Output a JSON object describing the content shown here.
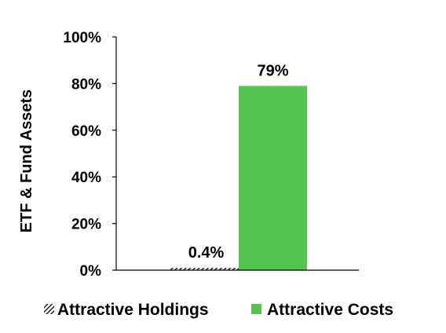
{
  "chart_data": {
    "type": "bar",
    "ylabel": "ETF & Fund Assets",
    "ylim": [
      0,
      100
    ],
    "yticks": [
      "0%",
      "20%",
      "40%",
      "60%",
      "80%",
      "100%"
    ],
    "ytick_values": [
      0,
      20,
      40,
      60,
      80,
      100
    ],
    "series": [
      {
        "name": "Attractive Holdings",
        "values": [
          0.4
        ],
        "label": "0.4%",
        "color": "#000000",
        "pattern": "hatched"
      },
      {
        "name": "Attractive Costs",
        "values": [
          79
        ],
        "label": "79%",
        "color": "#55c451",
        "pattern": "solid"
      }
    ],
    "grid": false,
    "legend_position": "bottom"
  }
}
